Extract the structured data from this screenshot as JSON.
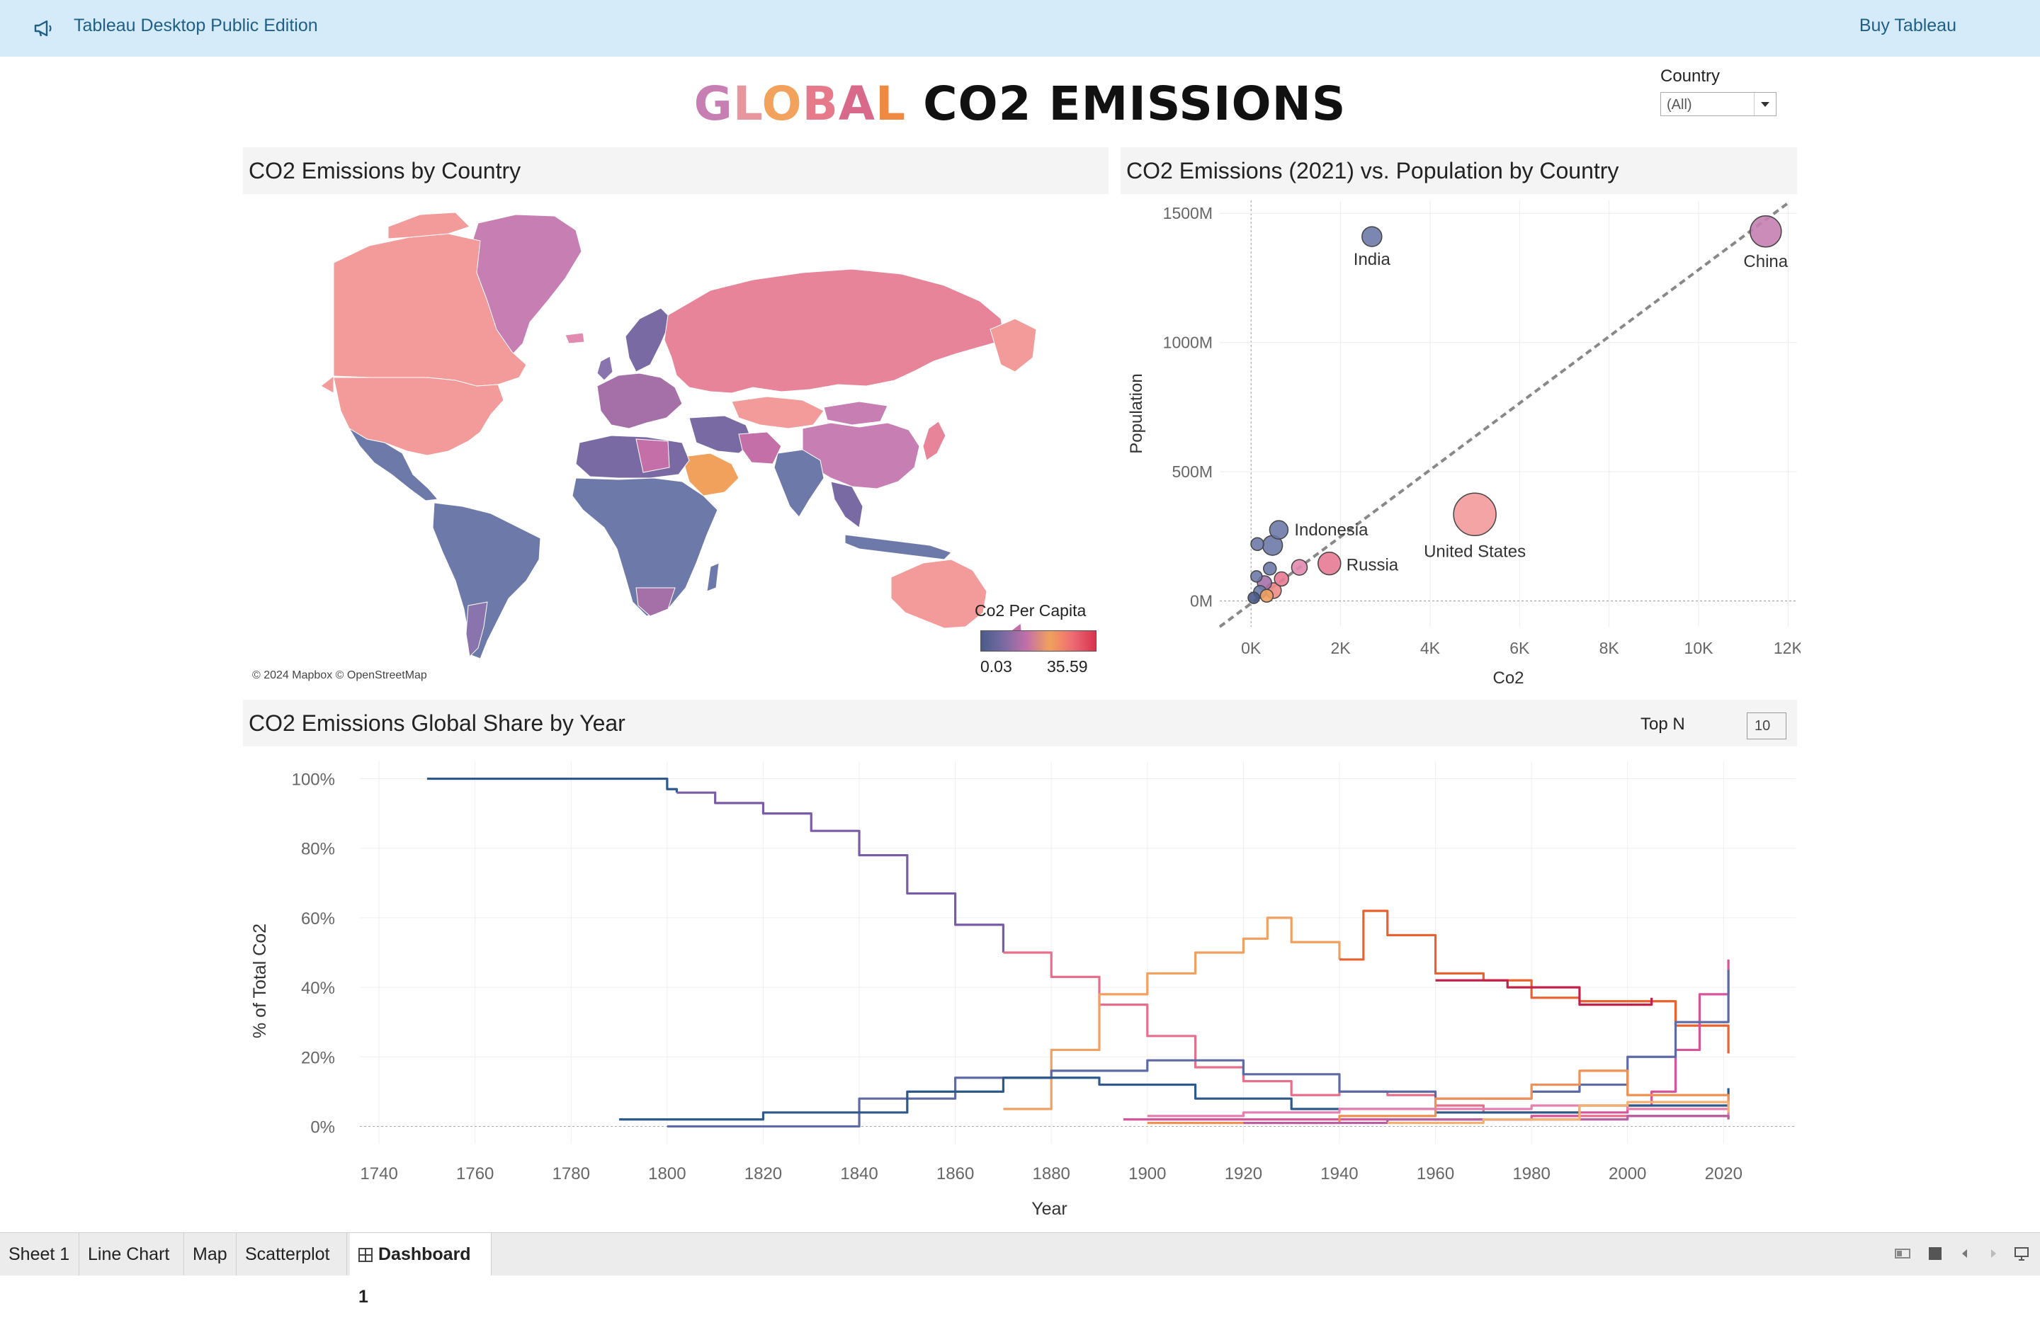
{
  "app": {
    "title": "Tableau Desktop Public Edition",
    "buy_label": "Buy Tableau"
  },
  "dashboard": {
    "title_colored": "GLOBAL",
    "title_rest": "CO2 EMISSIONS"
  },
  "filter": {
    "label": "Country",
    "value": "(All)"
  },
  "map_panel": {
    "title": "CO2 Emissions by Country",
    "credit": "© 2024 Mapbox © OpenStreetMap",
    "legend_title": "Co2 Per Capita",
    "legend_min": "0.03",
    "legend_max": "35.59",
    "colors": {
      "low": "#4a5b8a",
      "mid": "#c46fa8",
      "high": "#d7334e"
    }
  },
  "scatter_panel": {
    "title": "CO2 Emissions (2021) vs. Population by Country"
  },
  "line_panel": {
    "title": "CO2 Emissions Global Share by Year",
    "topn_label": "Top N",
    "topn_value": "10"
  },
  "tabs": [
    {
      "label": "Sheet 1"
    },
    {
      "label": "Line Chart"
    },
    {
      "label": "Map"
    },
    {
      "label": "Scatterplot"
    },
    {
      "label": "Dashboard 1"
    }
  ],
  "chart_data": [
    {
      "type": "scatter",
      "xlabel": "Co2",
      "ylabel": "Population",
      "x_ticks": [
        "0K",
        "2K",
        "4K",
        "6K",
        "8K",
        "10K",
        "12K"
      ],
      "y_ticks": [
        "0M",
        "500M",
        "1000M",
        "1500M"
      ],
      "xlim": [
        -700,
        12200
      ],
      "ylim": [
        -100,
        1550
      ],
      "trend_line": {
        "style": "dashed",
        "color": "#888888"
      },
      "points": [
        {
          "label": "India",
          "x": 2700,
          "y": 1410,
          "size": 14,
          "color": "#6d79a8"
        },
        {
          "label": "China",
          "x": 11500,
          "y": 1430,
          "size": 22,
          "color": "#c77fb3"
        },
        {
          "label": "United States",
          "x": 5000,
          "y": 335,
          "size": 30,
          "color": "#f39a9a"
        },
        {
          "label": "Indonesia",
          "x": 620,
          "y": 275,
          "size": 13,
          "color": "#6d79a8"
        },
        {
          "label": "Russia",
          "x": 1750,
          "y": 145,
          "size": 16,
          "color": "#e67a93"
        },
        {
          "label": "",
          "x": 480,
          "y": 215,
          "size": 14,
          "color": "#6d79a8"
        },
        {
          "label": "",
          "x": 140,
          "y": 220,
          "size": 9,
          "color": "#6d79a8"
        },
        {
          "label": "",
          "x": 1080,
          "y": 130,
          "size": 11,
          "color": "#e28bb0"
        },
        {
          "label": "",
          "x": 420,
          "y": 125,
          "size": 9,
          "color": "#6d79a8"
        },
        {
          "label": "",
          "x": 680,
          "y": 85,
          "size": 10,
          "color": "#e67a93"
        },
        {
          "label": "",
          "x": 300,
          "y": 70,
          "size": 10,
          "color": "#a56fa8"
        },
        {
          "label": "",
          "x": 500,
          "y": 40,
          "size": 11,
          "color": "#ef8a86"
        },
        {
          "label": "",
          "x": 120,
          "y": 95,
          "size": 8,
          "color": "#6d79a8"
        },
        {
          "label": "",
          "x": 200,
          "y": 35,
          "size": 9,
          "color": "#6d79a8"
        },
        {
          "label": "",
          "x": 60,
          "y": 12,
          "size": 8,
          "color": "#4a5b8a"
        },
        {
          "label": "",
          "x": 350,
          "y": 20,
          "size": 9,
          "color": "#f0a060"
        }
      ]
    },
    {
      "type": "line",
      "xlabel": "Year",
      "ylabel": "% of Total Co2",
      "x_ticks": [
        "1740",
        "1760",
        "1780",
        "1800",
        "1820",
        "1840",
        "1860",
        "1880",
        "1900",
        "1920",
        "1940",
        "1960",
        "1980",
        "2000",
        "2020"
      ],
      "y_ticks": [
        "0%",
        "20%",
        "40%",
        "60%",
        "80%",
        "100%"
      ],
      "xlim": [
        1736,
        2035
      ],
      "ylim": [
        -5,
        105
      ],
      "series": [
        {
          "color": "#2d5a8a",
          "points": [
            [
              1750,
              100
            ],
            [
              1791,
              100
            ],
            [
              1800,
              97
            ],
            [
              1802,
              96
            ]
          ]
        },
        {
          "color": "#7a5ba6",
          "points": [
            [
              1802,
              96
            ],
            [
              1810,
              93
            ],
            [
              1820,
              90
            ],
            [
              1830,
              85
            ],
            [
              1840,
              78
            ],
            [
              1850,
              67
            ],
            [
              1860,
              58
            ],
            [
              1870,
              50
            ]
          ]
        },
        {
          "color": "#e6708c",
          "points": [
            [
              1870,
              50
            ],
            [
              1880,
              43
            ],
            [
              1890,
              35
            ],
            [
              1900,
              26
            ],
            [
              1910,
              17
            ],
            [
              1920,
              13
            ],
            [
              1930,
              9
            ],
            [
              1940,
              10
            ],
            [
              1950,
              9
            ],
            [
              1960,
              6
            ],
            [
              1970,
              4
            ],
            [
              1990,
              3
            ],
            [
              2021,
              2
            ]
          ]
        },
        {
          "color": "#f0a060",
          "points": [
            [
              1870,
              5
            ],
            [
              1880,
              22
            ],
            [
              1890,
              38
            ],
            [
              1900,
              44
            ],
            [
              1910,
              50
            ],
            [
              1920,
              54
            ],
            [
              1925,
              60
            ],
            [
              1930,
              53
            ],
            [
              1940,
              48
            ]
          ]
        },
        {
          "color": "#e8612f",
          "points": [
            [
              1940,
              48
            ],
            [
              1945,
              62
            ],
            [
              1950,
              55
            ],
            [
              1960,
              44
            ],
            [
              1970,
              42
            ],
            [
              1980,
              37
            ],
            [
              1990,
              36
            ],
            [
              2000,
              36
            ],
            [
              2010,
              29
            ],
            [
              2021,
              21
            ]
          ]
        },
        {
          "color": "#c0224a",
          "points": [
            [
              1960,
              42
            ],
            [
              1975,
              40
            ],
            [
              1990,
              35
            ],
            [
              2005,
              37
            ]
          ]
        },
        {
          "color": "#d6549a",
          "points": [
            [
              1895,
              2
            ],
            [
              1920,
              2
            ],
            [
              1950,
              2
            ],
            [
              1980,
              3
            ],
            [
              1990,
              4
            ],
            [
              2000,
              6
            ],
            [
              2005,
              10
            ],
            [
              2010,
              22
            ],
            [
              2015,
              38
            ],
            [
              2021,
              48
            ]
          ]
        },
        {
          "color": "#5d6aa6",
          "points": [
            [
              1800,
              0
            ],
            [
              1840,
              8
            ],
            [
              1860,
              14
            ],
            [
              1880,
              16
            ],
            [
              1900,
              19
            ],
            [
              1920,
              15
            ],
            [
              1940,
              10
            ],
            [
              1960,
              8
            ],
            [
              1980,
              10
            ],
            [
              1990,
              12
            ],
            [
              2000,
              20
            ],
            [
              2010,
              30
            ],
            [
              2021,
              45
            ]
          ]
        },
        {
          "color": "#2d5a8a",
          "points": [
            [
              1790,
              2
            ],
            [
              1820,
              4
            ],
            [
              1850,
              10
            ],
            [
              1870,
              14
            ],
            [
              1890,
              12
            ],
            [
              1910,
              8
            ],
            [
              1930,
              5
            ],
            [
              1960,
              4
            ],
            [
              1990,
              6
            ],
            [
              2021,
              11
            ]
          ]
        },
        {
          "color": "#f09055",
          "points": [
            [
              1900,
              1
            ],
            [
              1940,
              3
            ],
            [
              1960,
              8
            ],
            [
              1980,
              12
            ],
            [
              1990,
              16
            ],
            [
              2000,
              9
            ],
            [
              2021,
              6
            ]
          ]
        },
        {
          "color": "#e57fb0",
          "points": [
            [
              1900,
              3
            ],
            [
              1920,
              4
            ],
            [
              1940,
              5
            ],
            [
              1960,
              5
            ],
            [
              1980,
              6
            ],
            [
              2000,
              5
            ],
            [
              2021,
              3
            ]
          ]
        },
        {
          "color": "#b85fa0",
          "points": [
            [
              1920,
              1
            ],
            [
              1950,
              2
            ],
            [
              1980,
              2
            ],
            [
              2000,
              3
            ],
            [
              2021,
              2
            ]
          ]
        },
        {
          "color": "#f3b070",
          "points": [
            [
              1950,
              1
            ],
            [
              1970,
              2
            ],
            [
              1990,
              6
            ],
            [
              2000,
              7
            ],
            [
              2021,
              4
            ]
          ]
        }
      ]
    }
  ]
}
